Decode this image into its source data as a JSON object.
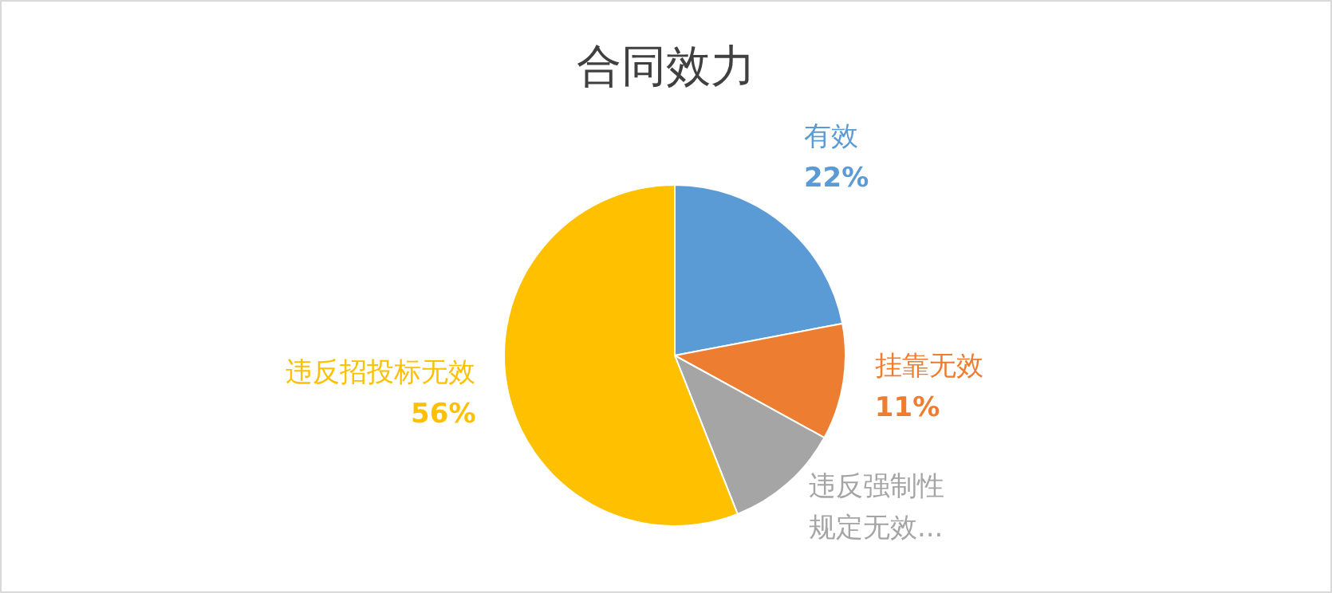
{
  "chart_data": {
    "type": "pie",
    "title": "合同效力",
    "categories": [
      "有效",
      "挂靠无效",
      "违反强制性规定无效...",
      "违反招投标无效"
    ],
    "values": [
      22,
      11,
      11,
      56
    ],
    "colors": [
      "#5b9bd5",
      "#ed7d31",
      "#a5a5a5",
      "#ffc000"
    ],
    "value_labels": [
      "22%",
      "11%",
      null,
      "56%"
    ],
    "legend": false
  }
}
